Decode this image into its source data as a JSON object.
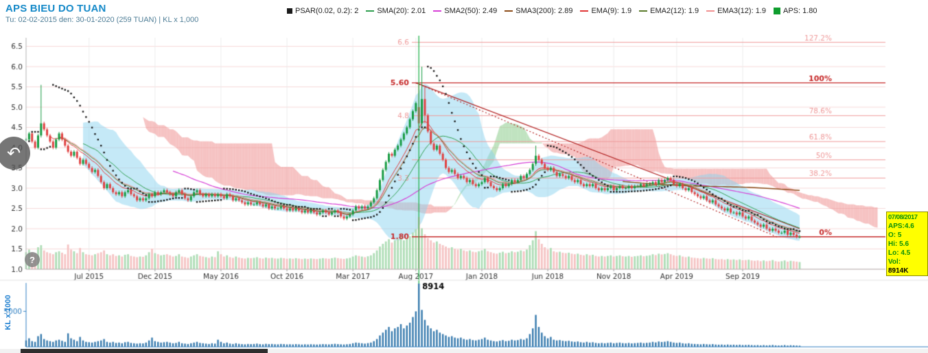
{
  "header": {
    "title": "APS BIEU DO TUAN",
    "subtitle": "Tu: 02-02-2015 den: 30-01-2020 (259 TUAN) | KL x 1,000"
  },
  "legend": {
    "items": [
      {
        "label": "PSAR(0.02, 0.2): 2",
        "color": "#1a1a1a",
        "marker": "square"
      },
      {
        "label": "SMA(20): 2.01",
        "color": "#2e9e4f",
        "marker": "line"
      },
      {
        "label": "SMA2(50): 2.49",
        "color": "#d63fd6",
        "marker": "line"
      },
      {
        "label": "SMA3(200): 2.89",
        "color": "#8b4a16",
        "marker": "line"
      },
      {
        "label": "EMA(9): 1.9",
        "color": "#e03535",
        "marker": "line"
      },
      {
        "label": "EMA2(12): 1.9",
        "color": "#5a7a2a",
        "marker": "line"
      },
      {
        "label": "EMA3(12): 1.9",
        "color": "#f09090",
        "marker": "line"
      },
      {
        "label": "APS: 1.80",
        "color": "#0f9d2e",
        "marker": "square"
      }
    ]
  },
  "info_box": {
    "date": "07/08/2017",
    "aps": "APS:4.6",
    "open": "O: 5",
    "high": "Hi: 5.6",
    "low": "Lo: 4.5",
    "vol_label": "Vol:",
    "vol_value": "8914K"
  },
  "icons": {
    "back": "↶",
    "help": "?"
  },
  "colors": {
    "title": "#1589c8",
    "subtitle": "#4e7d96",
    "grid_h": "#f6d8d8",
    "grid_v": "#ececec",
    "candle_up": "#169b42",
    "candle_down": "#e04040",
    "vol_up": "#aeddb6",
    "vol_down": "#f5c3c3",
    "cloud_bull": "rgba(130,200,130,0.5)",
    "cloud_bear": "rgba(238,146,146,0.55)",
    "bollinger": "rgba(140,212,240,0.5)",
    "sma20": "#2e9e4f",
    "sma50": "#d63fd6",
    "sma200": "#8b4a16",
    "ema9": "#e03535",
    "ema12": "#5a7a2a",
    "ema12b": "#f09090",
    "psar": "#1a1a1a",
    "fib_light": "#ef9a9a",
    "fib_strong": "#c62828",
    "trend": "#b22222",
    "crosshair": "#21b14b",
    "axis_blue": "#2f7fc1",
    "volume_bar": "#3579ad",
    "axis_text": "#333333"
  },
  "chart_data": {
    "type": "candlestick+volume",
    "title": "APS BIEU DO TUAN",
    "weeks": 259,
    "date_range": {
      "from": "02-02-2015",
      "to": "30-01-2020"
    },
    "y_axis": {
      "min": 1.0,
      "max": 6.5,
      "step": 0.5
    },
    "x_labels": [
      "Jul 2015",
      "Dec 2015",
      "May 2016",
      "Oct 2016",
      "Mar 2017",
      "Aug 2017",
      "Jan 2018",
      "Jun 2018",
      "Nov 2018",
      "Apr 2019",
      "Sep 2019"
    ],
    "x_label_indices": [
      21,
      43,
      65,
      87,
      109,
      130,
      152,
      174,
      196,
      217,
      239
    ],
    "selected": {
      "index": 131,
      "date": "07/08/2017",
      "open": 5.0,
      "high": 5.6,
      "low": 4.5,
      "close": 4.6,
      "volume": 8914
    },
    "ohlc_overrides": {
      "5": [
        4.3,
        5.55,
        4.25,
        4.6
      ],
      "131": [
        5.0,
        5.6,
        4.5,
        4.6
      ],
      "132": [
        4.6,
        6.0,
        4.5,
        5.2
      ],
      "133": [
        5.2,
        5.5,
        4.6,
        4.8
      ],
      "170": [
        3.6,
        4.05,
        3.55,
        3.8
      ]
    },
    "closes": [
      4.2,
      4.35,
      4.15,
      4.0,
      4.3,
      4.6,
      4.45,
      4.3,
      4.15,
      4.0,
      4.2,
      4.35,
      4.2,
      4.05,
      3.9,
      3.8,
      3.9,
      3.75,
      3.6,
      3.7,
      3.6,
      3.5,
      3.4,
      3.45,
      3.3,
      3.15,
      3.0,
      3.1,
      3.0,
      2.9,
      2.85,
      2.9,
      2.8,
      2.9,
      2.95,
      2.85,
      2.8,
      2.7,
      2.75,
      2.7,
      2.75,
      2.85,
      2.8,
      2.9,
      2.85,
      2.9,
      2.95,
      2.9,
      2.85,
      2.8,
      2.9,
      2.95,
      2.85,
      2.75,
      2.7,
      2.8,
      2.9,
      2.95,
      2.85,
      2.8,
      2.85,
      2.8,
      2.85,
      2.8,
      2.85,
      2.8,
      2.75,
      2.85,
      2.8,
      2.7,
      2.75,
      2.7,
      2.65,
      2.6,
      2.65,
      2.6,
      2.6,
      2.65,
      2.6,
      2.55,
      2.6,
      2.5,
      2.55,
      2.5,
      2.5,
      2.55,
      2.5,
      2.45,
      2.5,
      2.45,
      2.5,
      2.45,
      2.4,
      2.45,
      2.4,
      2.45,
      2.4,
      2.35,
      2.4,
      2.45,
      2.4,
      2.35,
      2.4,
      2.45,
      2.4,
      2.3,
      2.25,
      2.3,
      2.35,
      2.45,
      2.55,
      2.5,
      2.55,
      2.5,
      2.55,
      2.65,
      2.75,
      2.95,
      3.2,
      3.45,
      3.65,
      3.85,
      3.8,
      3.95,
      4.05,
      4.2,
      4.35,
      4.5,
      4.7,
      4.9,
      5.1,
      4.6,
      5.2,
      4.8,
      4.4,
      4.1,
      3.95,
      4.05,
      3.85,
      3.7,
      3.5,
      3.4,
      3.45,
      3.35,
      3.25,
      3.3,
      3.25,
      3.15,
      3.2,
      3.1,
      3.05,
      3.1,
      3.15,
      3.25,
      3.15,
      3.05,
      3.0,
      2.95,
      3.0,
      3.1,
      3.05,
      3.1,
      3.2,
      3.15,
      3.2,
      3.3,
      3.25,
      3.35,
      3.45,
      3.6,
      3.8,
      3.7,
      3.6,
      3.5,
      3.45,
      3.5,
      3.4,
      3.3,
      3.35,
      3.3,
      3.25,
      3.3,
      3.2,
      3.15,
      3.2,
      3.1,
      3.05,
      3.1,
      3.05,
      3.1,
      3.0,
      2.95,
      3.0,
      2.95,
      3.0,
      3.05,
      2.95,
      3.0,
      3.05,
      3.0,
      3.0,
      3.05,
      3.0,
      3.05,
      3.05,
      3.1,
      3.05,
      3.1,
      3.1,
      3.15,
      3.1,
      3.2,
      3.15,
      3.2,
      3.25,
      3.2,
      3.1,
      3.05,
      3.1,
      3.0,
      2.95,
      3.0,
      2.9,
      2.85,
      2.8,
      2.75,
      2.8,
      2.7,
      2.65,
      2.7,
      2.6,
      2.55,
      2.5,
      2.45,
      2.5,
      2.4,
      2.4,
      2.35,
      2.4,
      2.3,
      2.25,
      2.3,
      2.2,
      2.15,
      2.1,
      2.05,
      2.1,
      2.0,
      1.95,
      2.0,
      1.95,
      1.9,
      1.9,
      1.95,
      1.85,
      1.9,
      1.85,
      1.8,
      1.8
    ],
    "volumes": [
      900,
      1200,
      800,
      700,
      1500,
      1800,
      1100,
      900,
      800,
      700,
      900,
      1000,
      850,
      700,
      1900,
      1200,
      1000,
      800,
      1400,
      900,
      700,
      650,
      600,
      700,
      800,
      900,
      1100,
      700,
      600,
      700,
      550,
      600,
      500,
      650,
      700,
      550,
      500,
      450,
      500,
      480,
      600,
      900,
      1300,
      800,
      700,
      600,
      650,
      700,
      600,
      500,
      550,
      700,
      500,
      450,
      400,
      500,
      600,
      700,
      550,
      500,
      450,
      400,
      500,
      450,
      1000,
      700,
      500,
      600,
      450,
      400,
      500,
      420,
      380,
      350,
      400,
      380,
      400,
      450,
      380,
      350,
      420,
      380,
      400,
      360,
      350,
      400,
      380,
      340,
      360,
      340,
      380,
      350,
      320,
      350,
      330,
      360,
      340,
      320,
      350,
      380,
      360,
      340,
      380,
      420,
      380,
      350,
      330,
      360,
      400,
      500,
      600,
      550,
      500,
      450,
      520,
      600,
      800,
      1100,
      1600,
      2000,
      2400,
      2800,
      2200,
      2600,
      2800,
      3200,
      2600,
      3000,
      3400,
      4200,
      5000,
      8914,
      5200,
      3800,
      3000,
      2600,
      2200,
      2400,
      2000,
      1800,
      1600,
      1400,
      1500,
      1300,
      1200,
      1300,
      1100,
      1000,
      1100,
      950,
      900,
      1000,
      1100,
      1300,
      1000,
      900,
      800,
      750,
      850,
      950,
      800,
      850,
      1000,
      900,
      950,
      1100,
      1000,
      1200,
      1800,
      2600,
      4500,
      2800,
      2000,
      1500,
      1200,
      1400,
      1000,
      900,
      950,
      850,
      800,
      850,
      750,
      700,
      750,
      650,
      600,
      700,
      600,
      650,
      550,
      500,
      550,
      500,
      550,
      600,
      500,
      550,
      600,
      520,
      500,
      550,
      480,
      520,
      550,
      600,
      520,
      560,
      600,
      700,
      620,
      750,
      680,
      720,
      800,
      700,
      600,
      550,
      600,
      500,
      450,
      500,
      420,
      400,
      380,
      350,
      400,
      360,
      340,
      380,
      320,
      300,
      320,
      280,
      320,
      280,
      300,
      260,
      300,
      250,
      260,
      280,
      240,
      220,
      240,
      200,
      240,
      200,
      220,
      260,
      200,
      180,
      200,
      240,
      180,
      220,
      200,
      180,
      160
    ],
    "fibonacci": [
      {
        "pct": "127.2%",
        "price": 6.6,
        "price_label": "6.6",
        "strong": false
      },
      {
        "pct": "100%",
        "price": 5.6,
        "price_label": "5.60",
        "strong": true
      },
      {
        "pct": "78.6%",
        "price": 4.79,
        "price_label": "4.8",
        "strong": false
      },
      {
        "pct": "61.8%",
        "price": 4.15,
        "price_label": "",
        "strong": false
      },
      {
        "pct": "50%",
        "price": 3.7,
        "price_label": "",
        "strong": false
      },
      {
        "pct": "38.2%",
        "price": 3.25,
        "price_label": "3.3",
        "strong": false
      },
      {
        "pct": "0%",
        "price": 1.8,
        "price_label": "1.80",
        "strong": true
      }
    ],
    "trend_lines": [
      {
        "from_index": 130,
        "from_price": 5.6,
        "to_index": 258,
        "to_price": 2.0,
        "style": "solid"
      },
      {
        "from_index": 130,
        "from_price": 5.6,
        "to_index": 251,
        "to_price": 1.78,
        "style": "dotted"
      }
    ],
    "indicators": {
      "psar": [
        0.02,
        0.2
      ],
      "sma": 20,
      "sma2": 50,
      "sma3": 200,
      "ema": 9,
      "ema2": 12,
      "ema3": 12,
      "bollinger": [
        20,
        2
      ],
      "ichimoku": [
        9,
        26,
        52
      ]
    },
    "volume_axis": {
      "label": "KL x 1000",
      "tick_label": "5000",
      "tick_value": 5000,
      "max": 9000,
      "peak_label": "8914"
    }
  }
}
